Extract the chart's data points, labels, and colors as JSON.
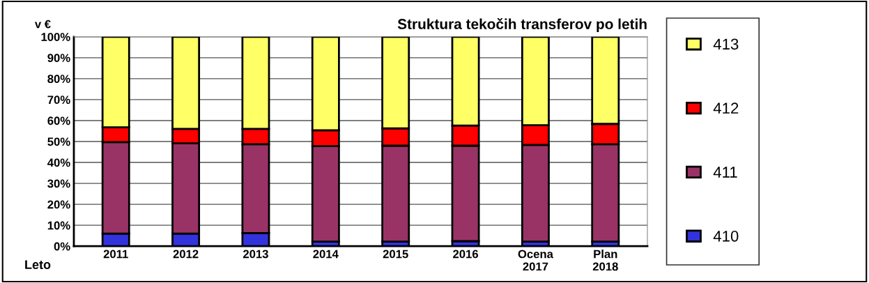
{
  "chart_data": {
    "type": "bar",
    "title": "Struktura tekočih transferov po letih",
    "ylabel": "v €",
    "xlabel": "Leto",
    "categories": [
      "2011",
      "2012",
      "2013",
      "2014",
      "2015",
      "2016",
      "Ocena\n2017",
      "Plan\n2018"
    ],
    "stacked": true,
    "series": [
      {
        "name": "410",
        "color": "#3333dd",
        "values": [
          6.0,
          6.0,
          6.3,
          2.2,
          2.2,
          2.4,
          2.2,
          2.2
        ]
      },
      {
        "name": "411",
        "color": "#993366",
        "values": [
          43.7,
          43.1,
          42.4,
          45.6,
          45.8,
          45.6,
          46.2,
          46.5
        ]
      },
      {
        "name": "412",
        "color": "#ff0000",
        "values": [
          7.1,
          6.9,
          7.3,
          7.6,
          8.3,
          9.6,
          9.4,
          9.7
        ]
      },
      {
        "name": "413",
        "color": "#ffff66",
        "values": [
          43.2,
          44.0,
          44.0,
          44.6,
          43.7,
          42.4,
          42.2,
          41.6
        ]
      }
    ],
    "ylim": [
      0,
      100
    ],
    "yticks": [
      {
        "value": 0,
        "label": "0%"
      },
      {
        "value": 10,
        "label": "10%"
      },
      {
        "value": 20,
        "label": "20%"
      },
      {
        "value": 30,
        "label": "30%"
      },
      {
        "value": 40,
        "label": "40%"
      },
      {
        "value": 50,
        "label": "50%"
      },
      {
        "value": 60,
        "label": "60%"
      },
      {
        "value": 70,
        "label": "70%"
      },
      {
        "value": 80,
        "label": "80%"
      },
      {
        "value": 90,
        "label": "90%"
      },
      {
        "value": 100,
        "label": "100%"
      }
    ],
    "grid": "y",
    "legend": "right"
  }
}
